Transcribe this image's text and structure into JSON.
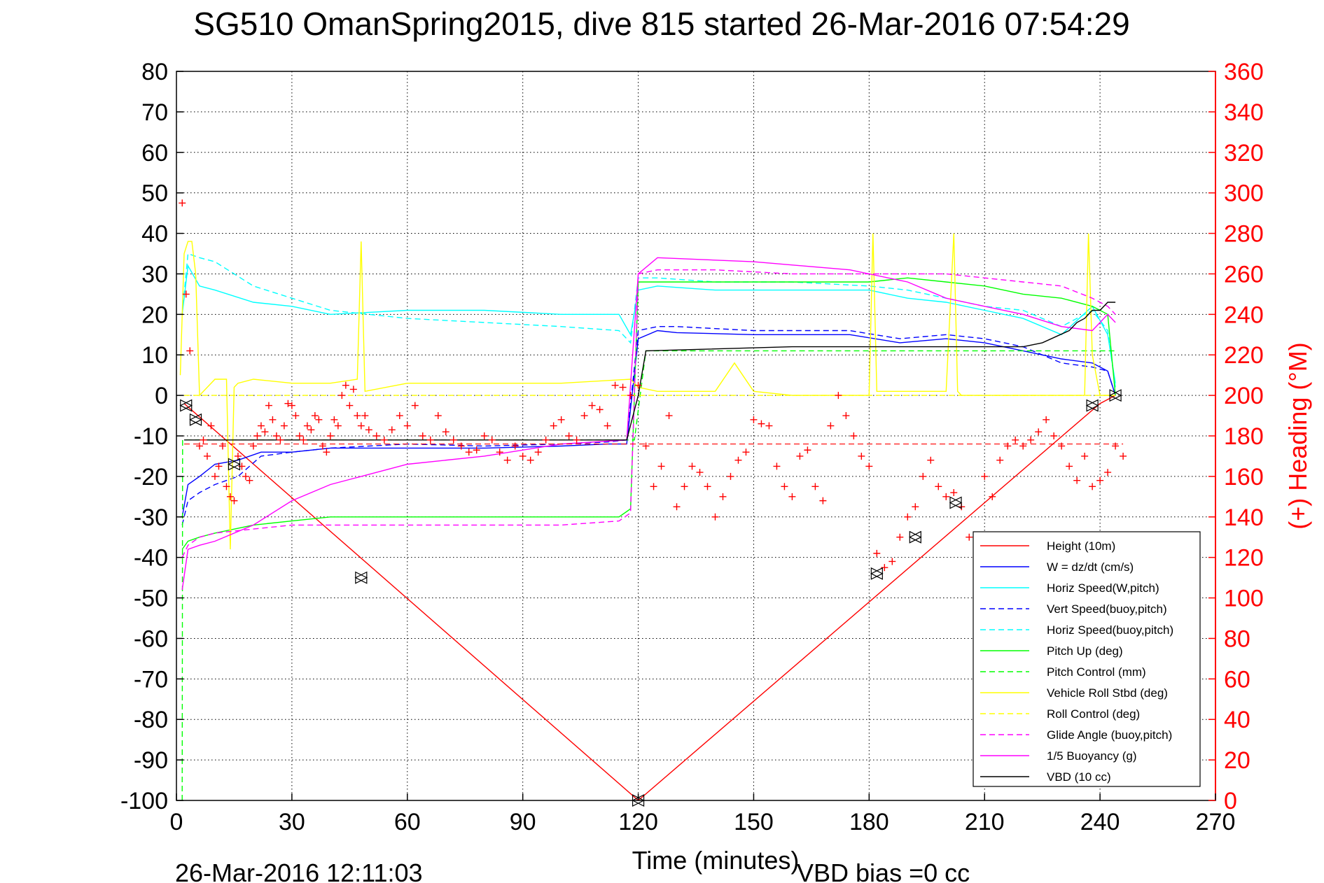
{
  "title": "SG510 OmanSpring2015, dive 815 started 26-Mar-2016 07:54:29",
  "footer": {
    "timestamp": "26-Mar-2016 12:11:03",
    "vbd_bias": "VBD bias =0 cc"
  },
  "chart_data": {
    "type": "line",
    "xlabel": "Time (minutes)",
    "ylabel": "",
    "ylabel_right": "(+) Heading (°M)",
    "xlim": [
      0,
      270
    ],
    "ylim": [
      -100,
      80
    ],
    "ylim_right": [
      0,
      360
    ],
    "xticks": [
      0,
      30,
      60,
      90,
      120,
      150,
      180,
      210,
      240,
      270
    ],
    "yticks": [
      80,
      70,
      60,
      50,
      40,
      30,
      20,
      10,
      0,
      -10,
      -20,
      -30,
      -40,
      -50,
      -60,
      -70,
      -80,
      -90,
      -100
    ],
    "yticks_right": [
      360,
      340,
      320,
      300,
      280,
      260,
      240,
      220,
      200,
      180,
      160,
      140,
      120,
      100,
      80,
      60,
      40,
      20,
      0
    ],
    "grid": true,
    "legend_position": "bottom-right",
    "series": [
      {
        "name": "Height (10m)",
        "color": "#ff0000",
        "style": "solid",
        "x": [
          2,
          120,
          240,
          244
        ],
        "y": [
          -2,
          -100,
          -2,
          0
        ]
      },
      {
        "name": "W = dz/dt (cm/s)",
        "color": "#0000ff",
        "style": "solid",
        "x": [
          1.5,
          3,
          6,
          10,
          16,
          22,
          30,
          40,
          60,
          80,
          100,
          112,
          117,
          120,
          125,
          130,
          150,
          175,
          188,
          200,
          210,
          220,
          230,
          238,
          242,
          244
        ],
        "y": [
          -30,
          -22,
          -20,
          -17,
          -16,
          -14,
          -14,
          -13,
          -13,
          -13,
          -12.5,
          -12,
          -12,
          14,
          16,
          15.5,
          15,
          15,
          13,
          14,
          13,
          11,
          9,
          8,
          6,
          0
        ]
      },
      {
        "name": "Horiz Speed(W,pitch)",
        "color": "#00ffff",
        "style": "solid",
        "x": [
          1.5,
          3,
          6,
          10,
          20,
          30,
          40,
          60,
          80,
          100,
          115,
          118,
          120,
          125,
          140,
          160,
          180,
          190,
          200,
          210,
          220,
          230,
          238,
          242,
          244
        ],
        "y": [
          20,
          32,
          27,
          26,
          23,
          22,
          20,
          21,
          21,
          20,
          20,
          15,
          26,
          27,
          26,
          26,
          26,
          24,
          23,
          21,
          19,
          15,
          22,
          15,
          3
        ]
      },
      {
        "name": "Vert Speed(buoy,pitch)",
        "color": "#0000ff",
        "style": "dashed",
        "x": [
          1.5,
          3,
          6,
          10,
          16,
          22,
          30,
          40,
          60,
          80,
          100,
          112,
          117,
          120,
          125,
          130,
          150,
          175,
          188,
          200,
          210,
          220,
          230,
          238,
          242,
          244
        ],
        "y": [
          -32,
          -26,
          -24,
          -22,
          -20,
          -15,
          -14,
          -13,
          -12,
          -12.5,
          -12,
          -11.5,
          -11,
          16,
          17,
          17,
          16,
          16,
          14,
          15,
          14,
          12,
          8,
          7,
          6,
          0
        ]
      },
      {
        "name": "Horiz Speed(buoy,pitch)",
        "color": "#00ffff",
        "style": "dashed",
        "x": [
          1.5,
          3,
          6,
          10,
          20,
          30,
          40,
          60,
          80,
          100,
          115,
          118,
          120,
          125,
          140,
          160,
          180,
          190,
          200,
          210,
          220,
          230,
          238,
          242,
          244
        ],
        "y": [
          20,
          35,
          34,
          33,
          27,
          24,
          21,
          19,
          18,
          17,
          16,
          13,
          29,
          29,
          28,
          28,
          27,
          26,
          24,
          22,
          21,
          17,
          21,
          16,
          2
        ]
      },
      {
        "name": "Pitch Up (deg)",
        "color": "#00ff00",
        "style": "solid",
        "x": [
          1.5,
          3,
          6,
          10,
          20,
          30,
          40,
          60,
          80,
          100,
          115,
          118,
          120,
          125,
          140,
          160,
          180,
          190,
          200,
          210,
          220,
          230,
          238,
          242,
          244
        ],
        "y": [
          -38,
          -36,
          -35,
          -34,
          -32,
          -31,
          -30,
          -30,
          -30,
          -30,
          -30,
          -28,
          28,
          28,
          28,
          28,
          28,
          29,
          28,
          27,
          25,
          24,
          22,
          20,
          0
        ]
      },
      {
        "name": "Pitch Control (mm)",
        "color": "#00ff00",
        "style": "dashed",
        "x": [
          1.5,
          1.6,
          2,
          117,
          119,
          122,
          140,
          180,
          200,
          230,
          244
        ],
        "y": [
          -100,
          -11,
          -11,
          -11,
          -11,
          11,
          11,
          11,
          11,
          11,
          11
        ]
      },
      {
        "name": "Vehicle Roll Stbd (deg)",
        "color": "#ffff00",
        "style": "solid",
        "x": [
          1,
          2,
          3,
          4,
          5,
          6,
          10,
          13,
          14,
          15,
          16,
          20,
          30,
          40,
          47,
          48,
          49,
          60,
          80,
          100,
          118,
          120,
          125,
          140,
          145,
          150,
          160,
          175,
          180,
          181,
          182,
          190,
          200,
          202,
          203,
          204,
          220,
          236,
          237,
          238,
          240,
          244
        ],
        "y": [
          5,
          35,
          38,
          38,
          30,
          0,
          4,
          4,
          -38,
          2,
          3,
          4,
          3,
          3,
          4,
          38,
          1,
          3,
          3,
          3,
          4,
          2,
          1,
          1,
          8,
          1,
          0,
          0,
          0,
          40,
          1,
          1,
          1,
          40,
          1,
          0,
          0,
          0,
          40,
          10,
          0,
          0
        ]
      },
      {
        "name": "Roll Control (deg)",
        "color": "#ffff00",
        "style": "dashed",
        "x": [
          2,
          244
        ],
        "y": [
          0,
          0
        ]
      },
      {
        "name": "Glide Angle (buoy,pitch)",
        "color": "#ff00ff",
        "style": "dashed",
        "x": [
          1.5,
          3,
          6,
          10,
          20,
          30,
          40,
          60,
          80,
          100,
          115,
          118,
          120,
          125,
          140,
          160,
          180,
          190,
          200,
          210,
          220,
          230,
          238,
          242,
          244
        ],
        "y": [
          -40,
          -37,
          -35,
          -34,
          -33,
          -32,
          -32,
          -32,
          -32,
          -32,
          -31,
          -29,
          30,
          31,
          31,
          30,
          30,
          30,
          30,
          29,
          28,
          27,
          24,
          22,
          20
        ]
      },
      {
        "name": "1/5 Buoyancy (g)",
        "color": "#ff00ff",
        "style": "solid",
        "x": [
          1.5,
          3,
          6,
          10,
          20,
          30,
          40,
          60,
          80,
          100,
          117,
          120,
          125,
          150,
          175,
          190,
          200,
          210,
          220,
          230,
          238,
          242,
          244
        ],
        "y": [
          -48,
          -38,
          -37,
          -36,
          -32,
          -26,
          -22,
          -17,
          -15,
          -12,
          -11,
          30,
          34,
          33,
          31,
          28,
          24,
          22,
          20,
          17,
          16,
          20,
          18
        ]
      },
      {
        "name": "VBD (10 cc)",
        "color": "#000000",
        "style": "solid",
        "x": [
          2,
          117,
          120,
          122,
          160,
          220,
          225,
          232,
          234,
          236,
          238,
          240,
          242,
          244
        ],
        "y": [
          -11,
          -11,
          0,
          11,
          12,
          12,
          13,
          16,
          18,
          19,
          21,
          21,
          23,
          23
        ]
      }
    ],
    "heading_series": {
      "axis": "right",
      "color": "#ff0000",
      "marker": "plus",
      "desired_heading": 176,
      "x": [
        1.5,
        2.5,
        3.5,
        6,
        7,
        8,
        9,
        10,
        11,
        12,
        13,
        14,
        15,
        16,
        17,
        18,
        19,
        20,
        21,
        22,
        23,
        24,
        25,
        26,
        27,
        28,
        29,
        30,
        31,
        32,
        33,
        34,
        35,
        36,
        37,
        38,
        39,
        40,
        41,
        42,
        43,
        44,
        45,
        46,
        47,
        48,
        49,
        50,
        52,
        54,
        56,
        58,
        60,
        62,
        64,
        66,
        68,
        70,
        72,
        74,
        76,
        78,
        80,
        82,
        84,
        86,
        88,
        90,
        92,
        94,
        96,
        98,
        100,
        102,
        104,
        106,
        108,
        110,
        112,
        114,
        116,
        118,
        120,
        122,
        124,
        126,
        128,
        130,
        132,
        134,
        136,
        138,
        140,
        142,
        144,
        146,
        148,
        150,
        152,
        154,
        156,
        158,
        160,
        162,
        164,
        166,
        168,
        170,
        172,
        174,
        176,
        178,
        180,
        182,
        184,
        186,
        188,
        190,
        192,
        194,
        196,
        198,
        200,
        202,
        204,
        206,
        208,
        210,
        212,
        214,
        216,
        218,
        220,
        222,
        224,
        226,
        228,
        230,
        232,
        234,
        236,
        238,
        240,
        242,
        244,
        246
      ],
      "y": [
        295,
        250,
        222,
        175,
        178,
        170,
        185,
        160,
        165,
        175,
        155,
        150,
        148,
        170,
        165,
        160,
        158,
        175,
        180,
        185,
        182,
        195,
        188,
        180,
        178,
        185,
        196,
        195,
        190,
        180,
        178,
        185,
        183,
        190,
        188,
        175,
        172,
        180,
        188,
        185,
        200,
        205,
        195,
        203,
        190,
        185,
        190,
        183,
        180,
        178,
        183,
        190,
        185,
        195,
        180,
        178,
        190,
        182,
        178,
        175,
        172,
        173,
        180,
        178,
        172,
        168,
        175,
        170,
        168,
        172,
        178,
        185,
        188,
        180,
        178,
        190,
        195,
        193,
        185,
        205,
        204,
        200,
        205,
        175,
        155,
        165,
        190,
        145,
        155,
        165,
        162,
        155,
        140,
        150,
        160,
        168,
        172,
        188,
        186,
        185,
        165,
        155,
        150,
        170,
        173,
        155,
        148,
        185,
        200,
        190,
        180,
        170,
        165,
        122,
        115,
        118,
        130,
        140,
        145,
        160,
        168,
        155,
        150,
        152,
        145,
        130,
        120,
        160,
        150,
        168,
        175,
        178,
        175,
        178,
        182,
        188,
        180,
        175,
        165,
        158,
        170,
        155,
        158,
        162,
        175,
        170
      ]
    },
    "markers": {
      "color": "#000000",
      "style": "triangle",
      "x": [
        2.5,
        5,
        15,
        48,
        120,
        182,
        192,
        202.5,
        238,
        244
      ],
      "y": [
        -2.5,
        -6,
        -17,
        -45,
        -100,
        -44,
        -35,
        -26.5,
        -2.5,
        0
      ]
    }
  }
}
